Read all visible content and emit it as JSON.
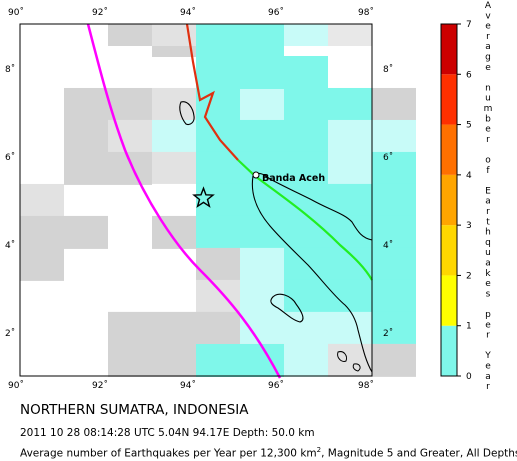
{
  "map": {
    "lon_ticks": [
      "90˚",
      "92˚",
      "94˚",
      "96˚",
      "98˚"
    ],
    "lat_ticks": [
      "2˚",
      "4˚",
      "6˚",
      "8˚"
    ],
    "city_label": "Banda Aceh",
    "colors": {
      "grid_gray": "#d3d3d3",
      "grid_light_gray": "#e2e2e2",
      "cyan_strong": "#7ff7ea",
      "cyan_light": "#c8fbf8",
      "trench_magenta": "#ff00ff",
      "fault_red": "#e03010",
      "fault_green": "#22ee22",
      "epicenter_star": "#000000"
    },
    "epicenter": {
      "lon": 94.17,
      "lat": 5.04
    }
  },
  "colorbar": {
    "ticks": [
      "0",
      "1",
      "2",
      "3",
      "4",
      "5",
      "6",
      "7"
    ],
    "title_letters": [
      "A",
      "v",
      "e",
      "r",
      "a",
      "g",
      "e",
      "",
      "n",
      "u",
      "m",
      "b",
      "e",
      "r",
      "",
      "o",
      "f",
      "",
      "E",
      "a",
      "r",
      "t",
      "h",
      "q",
      "u",
      "a",
      "k",
      "e",
      "s",
      "",
      "p",
      "e",
      "r",
      "",
      "Y",
      "e",
      "a",
      "r"
    ],
    "colors": [
      "#7ff7ea",
      "#ffff00",
      "#ffd700",
      "#ffa500",
      "#ff7000",
      "#ff3000",
      "#cc0000"
    ]
  },
  "caption": {
    "region": "NORTHERN SUMATRA, INDONESIA",
    "event": "2011 10 28 08:14:28 UTC 5.04N 94.17E Depth: 50.0 km",
    "average_prefix": "Average number of Earthquakes per Year per 12,300 km",
    "average_exp": "2",
    "average_suffix": ", Magnitude 5 and Greater, All Depths"
  }
}
